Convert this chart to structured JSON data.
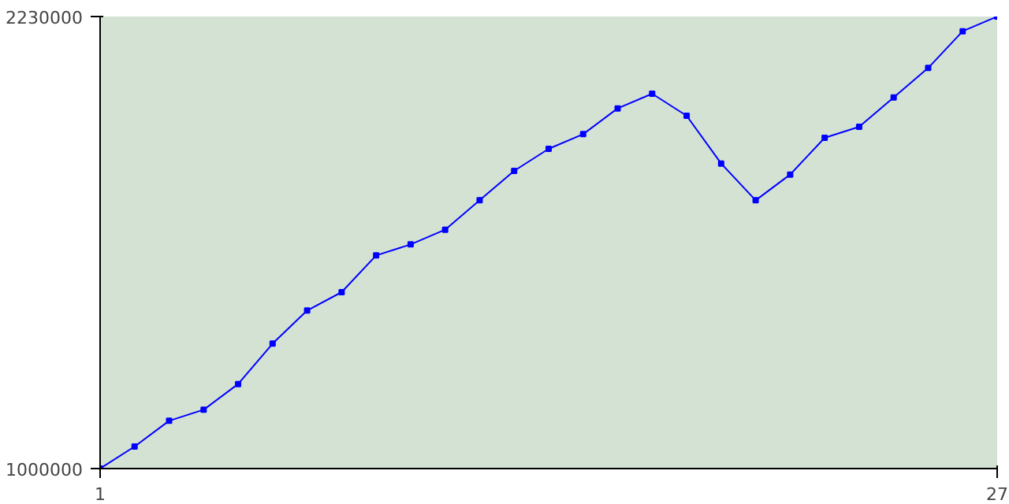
{
  "chart_data": {
    "type": "line",
    "x": [
      1,
      2,
      3,
      4,
      5,
      6,
      7,
      8,
      9,
      10,
      11,
      12,
      13,
      14,
      15,
      16,
      17,
      18,
      19,
      20,
      21,
      22,
      23,
      24,
      25,
      26,
      27
    ],
    "series": [
      {
        "color": "#0000ff",
        "values": [
          1000000,
          1060000,
          1130000,
          1160000,
          1230000,
          1340000,
          1430000,
          1480000,
          1580000,
          1610000,
          1650000,
          1730000,
          1810000,
          1870000,
          1910000,
          1980000,
          2020000,
          1960000,
          1830000,
          1730000,
          1800000,
          1900000,
          1930000,
          2010000,
          2090000,
          2190000,
          2230000
        ]
      }
    ],
    "xlim": [
      1,
      27
    ],
    "xticks": [
      1,
      27
    ],
    "ylim": [
      1000000,
      2230000
    ],
    "yticks": [
      1000000,
      2230000
    ],
    "marker": "square",
    "line_style": "solid"
  }
}
